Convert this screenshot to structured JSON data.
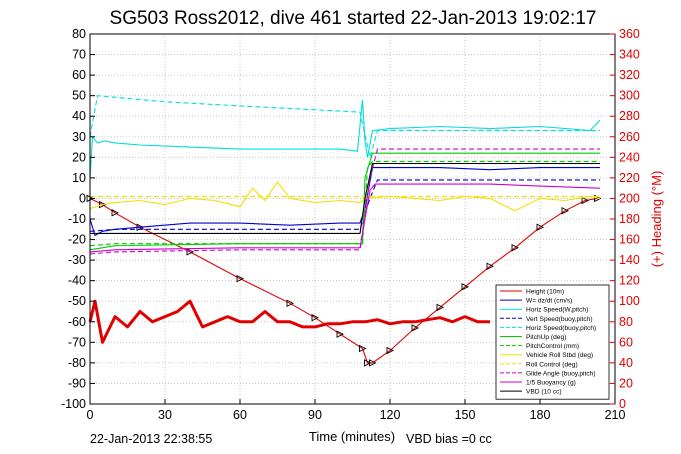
{
  "chart_data": {
    "type": "line",
    "title": "SG503 Ross2012, dive 461 started 22-Jan-2013 19:02:17",
    "xlabel": "Time (minutes)",
    "ylabel": "",
    "ylabel_right": "(+) Heading (°M)",
    "xlim": [
      0,
      210
    ],
    "ylim": [
      -100,
      80
    ],
    "ylim_right": [
      0,
      360
    ],
    "x_ticks": [
      "0",
      "30",
      "60",
      "90",
      "120",
      "150",
      "180",
      "210"
    ],
    "y_ticks": [
      "80",
      "70",
      "60",
      "50",
      "40",
      "30",
      "20",
      "10",
      "0",
      "-10",
      "-20",
      "-30",
      "-40",
      "-50",
      "-60",
      "-70",
      "-80",
      "-90",
      "-100"
    ],
    "y_right_ticks": [
      "360",
      "340",
      "320",
      "300",
      "280",
      "260",
      "240",
      "220",
      "200",
      "180",
      "160",
      "140",
      "120",
      "100",
      "80",
      "60",
      "40",
      "20",
      "0"
    ],
    "grid": true,
    "legend_placement": "bottom-right",
    "footer_date": "22-Jan-2013 22:38:55",
    "footer_vbd": "VBD bias =0 cc",
    "colors": {
      "red": "#e00000",
      "blue": "#0000cc",
      "cyan": "#00dddd",
      "green": "#00cc00",
      "yellow": "#f5e000",
      "magenta": "#cc00cc",
      "black": "#000000",
      "grid": "#c8c8c8"
    },
    "series": [
      {
        "name": "Height (10m)",
        "color": "#e00000",
        "style": "solid",
        "marker": "triangle",
        "x": [
          0,
          5,
          10,
          20,
          40,
          60,
          80,
          90,
          100,
          109,
          111,
          113,
          120,
          130,
          140,
          150,
          160,
          170,
          180,
          190,
          198,
          203
        ],
        "y": [
          0,
          -3,
          -7,
          -14,
          -26,
          -39,
          -51,
          -58,
          -66,
          -73,
          -80,
          -80,
          -74,
          -63,
          -53,
          -43,
          -33,
          -24,
          -14,
          -6,
          -1,
          0
        ]
      },
      {
        "name": "W= dz/dt (cm/s)",
        "color": "#0000cc",
        "style": "solid",
        "x": [
          0,
          2,
          5,
          10,
          20,
          40,
          60,
          80,
          100,
          108,
          110,
          113,
          120,
          140,
          160,
          180,
          200,
          204
        ],
        "y": [
          -10,
          -18,
          -16,
          -15,
          -14,
          -12,
          -12,
          -13,
          -12,
          -12,
          -5,
          15,
          15,
          15,
          14,
          15,
          15,
          15
        ]
      },
      {
        "name": "Horiz Speed(W,pitch)",
        "color": "#00dddd",
        "style": "solid",
        "x": [
          0,
          1,
          3,
          6,
          10,
          20,
          40,
          60,
          80,
          100,
          107,
          109,
          110,
          111,
          113,
          120,
          140,
          160,
          180,
          200,
          204
        ],
        "y": [
          10,
          30,
          27,
          28,
          27,
          26,
          25,
          24,
          24,
          24,
          23,
          48,
          28,
          20,
          33,
          34,
          35,
          34,
          35,
          33,
          38
        ]
      },
      {
        "name": "Vert Speed(buoy,pitch)",
        "color": "#0000cc",
        "style": "dashed",
        "x": [
          0,
          10,
          60,
          108,
          112,
          115,
          204
        ],
        "y": [
          -16,
          -15,
          -15,
          -15,
          0,
          9,
          9
        ]
      },
      {
        "name": "Horiz Speed(buoy,pitch)",
        "color": "#00dddd",
        "style": "dashed",
        "x": [
          0,
          3,
          30,
          60,
          108,
          112,
          115,
          204
        ],
        "y": [
          30,
          50,
          47,
          45,
          42,
          20,
          33,
          33
        ]
      },
      {
        "name": "PitchUp (deg)",
        "color": "#00cc00",
        "style": "solid",
        "x": [
          0,
          10,
          60,
          109,
          110,
          113,
          204
        ],
        "y": [
          -25,
          -23,
          -22,
          -22,
          10,
          22,
          22
        ]
      },
      {
        "name": "PitchControl (mm)",
        "color": "#00cc00",
        "style": "dashed",
        "x": [
          0,
          10,
          60,
          109,
          111,
          113,
          204
        ],
        "y": [
          -23,
          -22,
          -22,
          -22,
          15,
          18,
          18
        ]
      },
      {
        "name": "Vehicle Roll Stbd (deg)",
        "color": "#f5e000",
        "style": "solid",
        "x": [
          0,
          5,
          10,
          20,
          30,
          40,
          50,
          60,
          65,
          70,
          75,
          80,
          90,
          100,
          108,
          110,
          120,
          130,
          140,
          150,
          160,
          170,
          180,
          190,
          200,
          204
        ],
        "y": [
          -5,
          -3,
          -2,
          -1,
          -3,
          0,
          -1,
          -4,
          5,
          -1,
          8,
          0,
          -2,
          -1,
          -2,
          0,
          1,
          0,
          -1,
          1,
          0,
          -6,
          0,
          -1,
          1,
          0
        ]
      },
      {
        "name": "Roll Control (deg)",
        "color": "#f5e000",
        "style": "dashed",
        "x": [
          0,
          204
        ],
        "y": [
          1,
          1
        ]
      },
      {
        "name": "Glide Angle (buoy,pitch)",
        "color": "#cc00cc",
        "style": "dashed",
        "x": [
          0,
          10,
          60,
          108,
          112,
          115,
          204
        ],
        "y": [
          -27,
          -26,
          -25,
          -25,
          10,
          24,
          24
        ]
      },
      {
        "name": "1/5 Buoyancy (g)",
        "color": "#cc00cc",
        "style": "solid",
        "x": [
          0,
          10,
          60,
          108,
          112,
          114,
          160,
          180,
          204
        ],
        "y": [
          -26,
          -25,
          -24,
          -24,
          4,
          7,
          7,
          6,
          5
        ]
      },
      {
        "name": "VBD (10 cc)",
        "color": "#000000",
        "style": "solid",
        "x": [
          0,
          10,
          60,
          108,
          110,
          113,
          204
        ],
        "y": [
          -17,
          -17,
          -17,
          -17,
          0,
          17,
          17
        ]
      },
      {
        "name": "Heading",
        "axis": "right",
        "color": "#e00000",
        "style": "dots",
        "x": [
          0,
          2,
          5,
          10,
          15,
          20,
          25,
          30,
          35,
          40,
          45,
          50,
          55,
          60,
          65,
          70,
          75,
          80,
          85,
          90,
          95,
          100,
          105,
          110,
          115,
          120,
          125,
          130,
          135,
          140,
          145,
          150,
          155,
          160
        ],
        "y": [
          80,
          100,
          60,
          85,
          75,
          90,
          80,
          85,
          90,
          100,
          75,
          80,
          85,
          80,
          80,
          90,
          80,
          80,
          75,
          75,
          78,
          78,
          80,
          80,
          82,
          78,
          80,
          80,
          82,
          84,
          80,
          85,
          80,
          80
        ]
      }
    ]
  }
}
